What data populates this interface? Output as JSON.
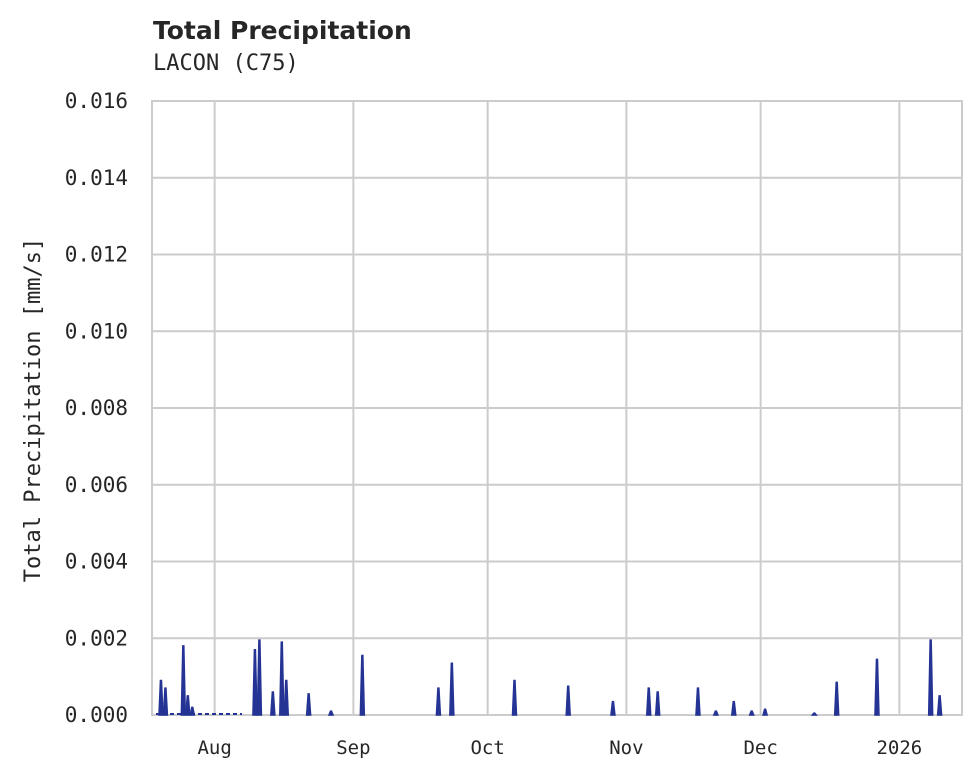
{
  "header": {
    "title": "Total Precipitation",
    "subtitle": "LACON (C75)"
  },
  "chart_data": {
    "type": "line",
    "title": "Total Precipitation",
    "subtitle": "LACON (C75)",
    "xlabel": "",
    "ylabel": "Total Precipitation [mm/s]",
    "ylim": [
      0,
      0.016
    ],
    "yticks": [
      "0.000",
      "0.002",
      "0.004",
      "0.006",
      "0.008",
      "0.010",
      "0.012",
      "0.014",
      "0.016"
    ],
    "xticks": [
      "Aug",
      "Sep",
      "Oct",
      "Nov",
      "Dec",
      "2026"
    ],
    "xrange": [
      "2025-07-18",
      "2026-01-15"
    ],
    "grid": true,
    "legend": null,
    "line_color": "#253494",
    "series": [
      {
        "name": "Total Precipitation",
        "points": [
          {
            "date": "2025-07-20",
            "value": 0.0009
          },
          {
            "date": "2025-07-21",
            "value": 0.0007
          },
          {
            "date": "2025-07-25",
            "value": 0.0018
          },
          {
            "date": "2025-07-26",
            "value": 0.0005
          },
          {
            "date": "2025-07-27",
            "value": 0.0002
          },
          {
            "date": "2025-08-10",
            "value": 0.0017
          },
          {
            "date": "2025-08-11",
            "value": 0.00195
          },
          {
            "date": "2025-08-14",
            "value": 0.0006
          },
          {
            "date": "2025-08-16",
            "value": 0.0019
          },
          {
            "date": "2025-08-17",
            "value": 0.0009
          },
          {
            "date": "2025-08-22",
            "value": 0.00055
          },
          {
            "date": "2025-08-27",
            "value": 0.0001
          },
          {
            "date": "2025-09-03",
            "value": 0.00155
          },
          {
            "date": "2025-09-20",
            "value": 0.0007
          },
          {
            "date": "2025-09-23",
            "value": 0.00135
          },
          {
            "date": "2025-10-07",
            "value": 0.0009
          },
          {
            "date": "2025-10-19",
            "value": 0.00075
          },
          {
            "date": "2025-10-29",
            "value": 0.00035
          },
          {
            "date": "2025-11-06",
            "value": 0.0007
          },
          {
            "date": "2025-11-08",
            "value": 0.0006
          },
          {
            "date": "2025-11-17",
            "value": 0.0007
          },
          {
            "date": "2025-11-21",
            "value": 0.0001
          },
          {
            "date": "2025-11-25",
            "value": 0.00035
          },
          {
            "date": "2025-11-29",
            "value": 0.0001
          },
          {
            "date": "2025-12-02",
            "value": 0.00015
          },
          {
            "date": "2025-12-13",
            "value": 5e-05
          },
          {
            "date": "2025-12-18",
            "value": 0.00085
          },
          {
            "date": "2025-12-27",
            "value": 0.00145
          },
          {
            "date": "2026-01-08",
            "value": 0.00195
          },
          {
            "date": "2026-01-10",
            "value": 0.0005
          }
        ]
      }
    ]
  }
}
